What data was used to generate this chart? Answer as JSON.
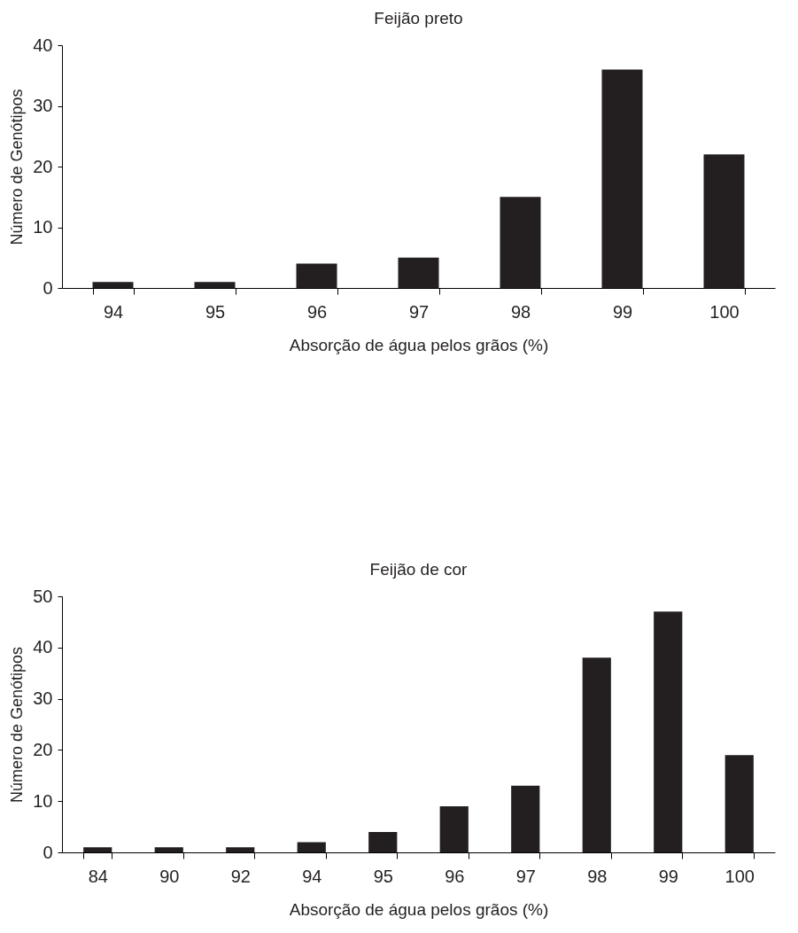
{
  "chart_data": [
    {
      "type": "bar",
      "title": "Feijão preto",
      "xlabel": "Absorção de água pelos grãos (%)",
      "ylabel": "Número de Genótipos",
      "categories": [
        "94",
        "95",
        "96",
        "97",
        "98",
        "99",
        "100"
      ],
      "values": [
        1,
        1,
        4,
        5,
        15,
        36,
        22
      ],
      "color": "#231f20",
      "ylim": [
        0,
        40
      ],
      "yticks": [
        0,
        10,
        20,
        30,
        40
      ],
      "grid": false
    },
    {
      "type": "bar",
      "title": "Feijão de cor",
      "xlabel": "Absorção de água pelos grãos (%)",
      "ylabel": "Número de Genótipos",
      "categories": [
        "84",
        "90",
        "92",
        "94",
        "95",
        "96",
        "97",
        "98",
        "99",
        "100"
      ],
      "values": [
        1,
        1,
        1,
        2,
        4,
        9,
        13,
        38,
        47,
        19
      ],
      "color": "#231f20",
      "ylim": [
        0,
        50
      ],
      "yticks": [
        0,
        10,
        20,
        30,
        40,
        50
      ],
      "grid": false
    }
  ]
}
